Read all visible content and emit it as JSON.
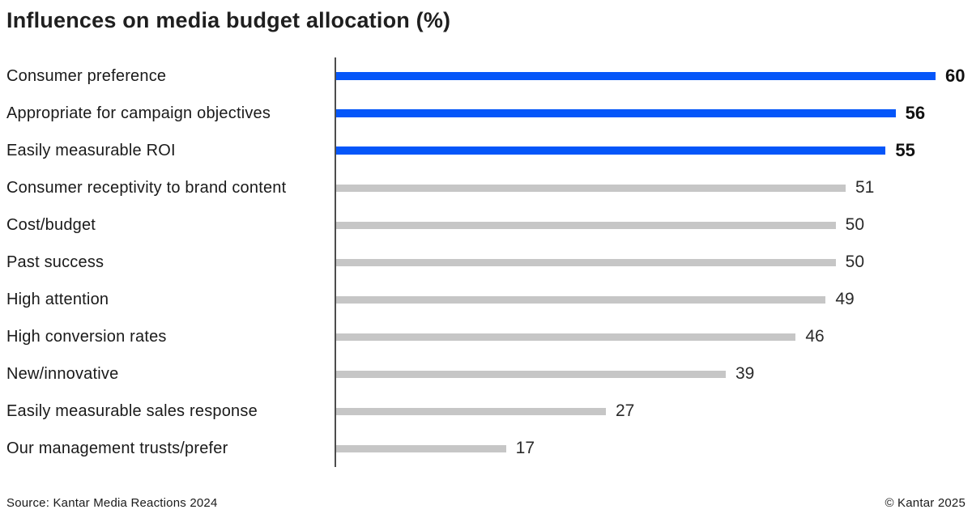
{
  "title": "Influences on media budget allocation (%)",
  "footer": {
    "source": "Source: Kantar Media Reactions 2024",
    "copyright": "© Kantar 2025"
  },
  "colors": {
    "highlight": "#0556f9",
    "muted": "#c6c6c6",
    "axis": "#4d4d4d",
    "text": "#1a1a1a"
  },
  "chart_data": {
    "type": "bar",
    "orientation": "horizontal",
    "title": "Influences on media budget allocation (%)",
    "categories": [
      "Consumer preference",
      "Appropriate for campaign objectives",
      "Easily measurable ROI",
      "Consumer receptivity to brand content",
      "Cost/budget",
      "Past success",
      "High attention",
      "High conversion rates",
      "New/innovative",
      "Easily measurable sales response",
      "Our management trusts/prefer"
    ],
    "values": [
      60,
      56,
      55,
      51,
      50,
      50,
      49,
      46,
      39,
      27,
      17
    ],
    "highlighted": [
      true,
      true,
      true,
      false,
      false,
      false,
      false,
      false,
      false,
      false,
      false
    ],
    "xlim": [
      0,
      60
    ],
    "value_labels": true,
    "grid": false,
    "legend": false,
    "xlabel": "",
    "ylabel": ""
  }
}
